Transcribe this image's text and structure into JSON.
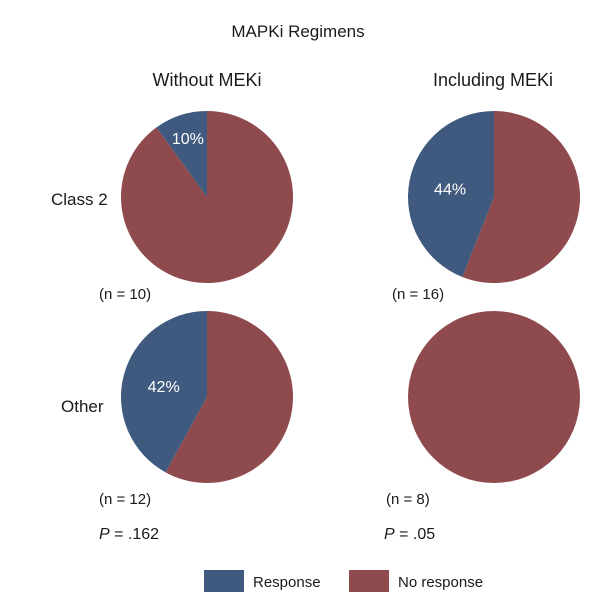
{
  "chart_data": {
    "type": "pie",
    "title": "MAPKi Regimens",
    "columns": [
      "Without MEKi",
      "Including MEKi"
    ],
    "rows": [
      "Class 2",
      "Other"
    ],
    "colors": {
      "Response": "#3f5a7e",
      "No response": "#8e4a4d"
    },
    "legend": {
      "placement": "bottom",
      "entries": [
        "Response",
        "No response"
      ]
    },
    "pies": [
      {
        "row": "Class 2",
        "column": "Without MEKi",
        "n_label": "(n = 10)",
        "response_pct": 10,
        "label": "10%"
      },
      {
        "row": "Class 2",
        "column": "Including MEKi",
        "n_label": "(n = 16)",
        "response_pct": 44,
        "label": "44%"
      },
      {
        "row": "Other",
        "column": "Without MEKi",
        "n_label": "(n = 12)",
        "response_pct": 42,
        "label": "42%"
      },
      {
        "row": "Other",
        "column": "Including MEKi",
        "n_label": "(n = 8)",
        "response_pct": 0,
        "label": ""
      }
    ],
    "p_values": [
      {
        "column": "Without MEKi",
        "prefix": "P",
        "value": " = .162"
      },
      {
        "column": "Including MEKi",
        "prefix": "P",
        "value": " = .05"
      }
    ]
  }
}
